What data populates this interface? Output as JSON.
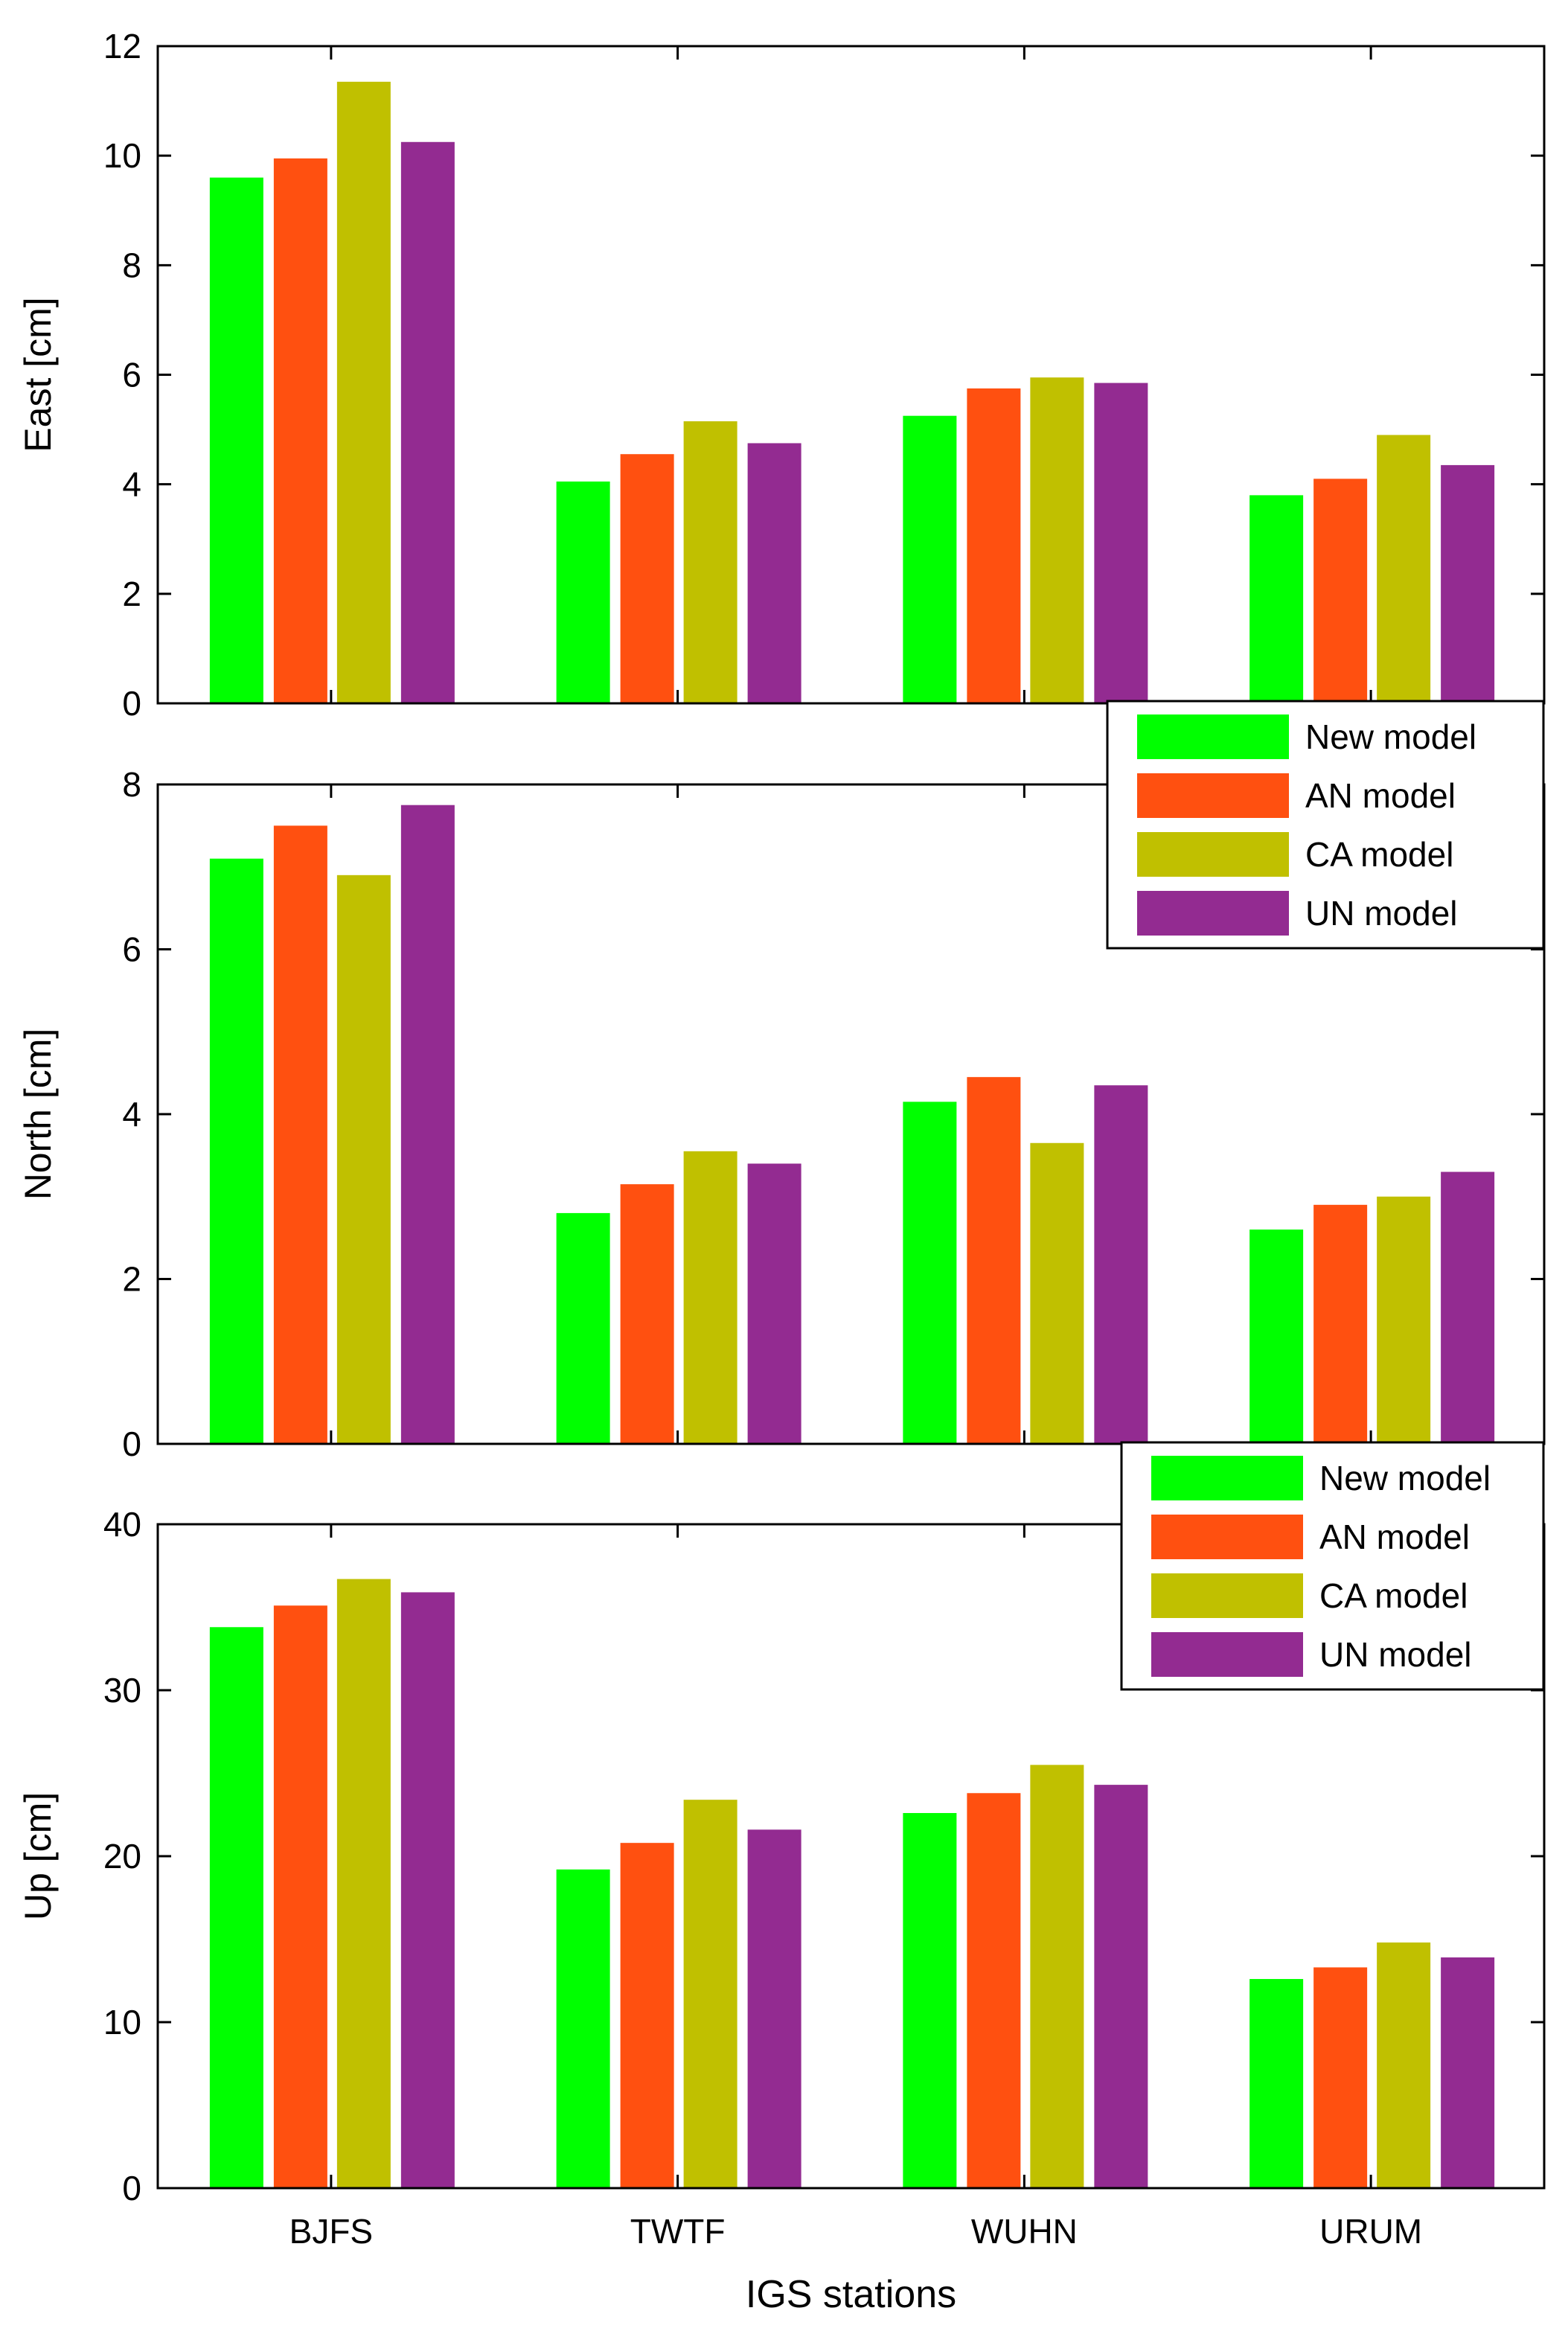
{
  "chart_data": [
    {
      "type": "bar",
      "categories": [
        "BJFS",
        "TWTF",
        "WUHN",
        "URUM"
      ],
      "ylabel": "East [cm]",
      "ylim": [
        0,
        12
      ],
      "yticks": [
        0,
        2,
        4,
        6,
        8,
        10,
        12
      ],
      "legend": "bottom-right",
      "series": [
        {
          "name": "New model",
          "color": "#00ff00",
          "values": [
            9.6,
            4.05,
            5.25,
            3.8
          ]
        },
        {
          "name": "AN model",
          "color": "#ff5010",
          "values": [
            9.95,
            4.55,
            5.75,
            4.1
          ]
        },
        {
          "name": "CA model",
          "color": "#c0c000",
          "values": [
            11.35,
            5.15,
            5.95,
            4.9
          ]
        },
        {
          "name": "UN model",
          "color": "#932b91",
          "values": [
            10.25,
            4.75,
            5.85,
            4.35
          ]
        }
      ]
    },
    {
      "type": "bar",
      "categories": [
        "BJFS",
        "TWTF",
        "WUHN",
        "URUM"
      ],
      "ylabel": "North [cm]",
      "ylim": [
        0,
        8
      ],
      "yticks": [
        0,
        2,
        4,
        6,
        8
      ],
      "legend": "bottom-right",
      "series": [
        {
          "name": "New model",
          "color": "#00ff00",
          "values": [
            7.1,
            2.8,
            4.15,
            2.6
          ]
        },
        {
          "name": "AN model",
          "color": "#ff5010",
          "values": [
            7.5,
            3.15,
            4.45,
            2.9
          ]
        },
        {
          "name": "CA model",
          "color": "#c0c000",
          "values": [
            6.9,
            3.55,
            3.65,
            3.0
          ]
        },
        {
          "name": "UN model",
          "color": "#932b91",
          "values": [
            7.75,
            3.4,
            4.35,
            3.3
          ]
        }
      ]
    },
    {
      "type": "bar",
      "categories": [
        "BJFS",
        "TWTF",
        "WUHN",
        "URUM"
      ],
      "ylabel": "Up [cm]",
      "xlabel": "IGS stations",
      "ylim": [
        0,
        40
      ],
      "yticks": [
        0,
        10,
        20,
        30,
        40
      ],
      "series": [
        {
          "name": "New model",
          "color": "#00ff00",
          "values": [
            33.8,
            19.2,
            22.6,
            12.6
          ]
        },
        {
          "name": "AN model",
          "color": "#ff5010",
          "values": [
            35.1,
            20.8,
            23.8,
            13.3
          ]
        },
        {
          "name": "CA model",
          "color": "#c0c000",
          "values": [
            36.7,
            23.4,
            25.5,
            14.8
          ]
        },
        {
          "name": "UN model",
          "color": "#932b91",
          "values": [
            35.9,
            21.6,
            24.3,
            13.9
          ]
        }
      ]
    }
  ]
}
